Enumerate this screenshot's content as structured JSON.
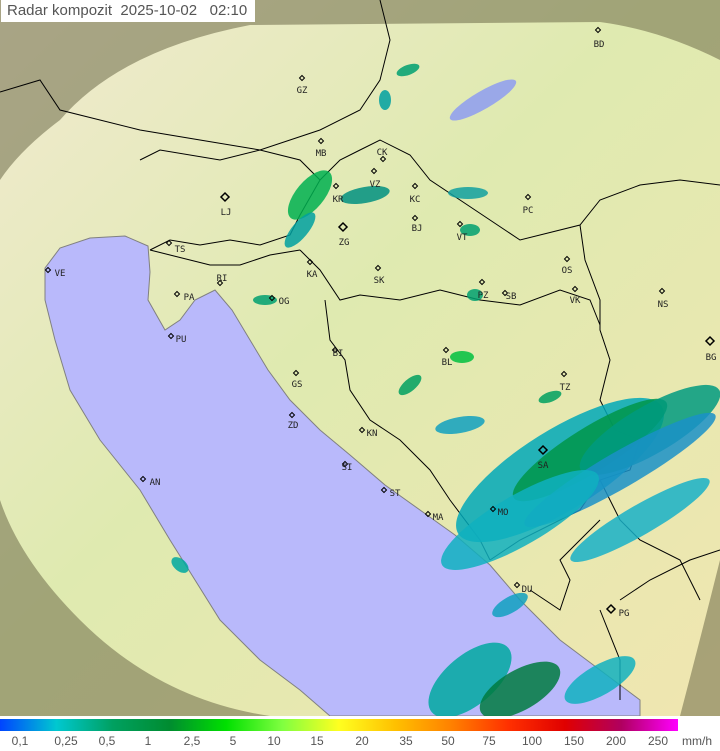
{
  "title": {
    "label": "Radar kompozit",
    "date": "2025-10-02",
    "time": "02:10"
  },
  "cities": [
    {
      "code": "GZ"
    },
    {
      "code": "BD"
    },
    {
      "code": "MB"
    },
    {
      "code": "CK"
    },
    {
      "code": "VZ"
    },
    {
      "code": "KR"
    },
    {
      "code": "KC"
    },
    {
      "code": "LJ"
    },
    {
      "code": "BJ"
    },
    {
      "code": "PC"
    },
    {
      "code": "ZG"
    },
    {
      "code": "VT"
    },
    {
      "code": "TS"
    },
    {
      "code": "VE"
    },
    {
      "code": "KA"
    },
    {
      "code": "SK"
    },
    {
      "code": "OS"
    },
    {
      "code": "RI"
    },
    {
      "code": "PA"
    },
    {
      "code": "OG"
    },
    {
      "code": "PZ"
    },
    {
      "code": "SB"
    },
    {
      "code": "VK"
    },
    {
      "code": "NS"
    },
    {
      "code": "PU"
    },
    {
      "code": "BI"
    },
    {
      "code": "BL"
    },
    {
      "code": "BG"
    },
    {
      "code": "GS"
    },
    {
      "code": "TZ"
    },
    {
      "code": "ZD"
    },
    {
      "code": "KN"
    },
    {
      "code": "SA"
    },
    {
      "code": "AN"
    },
    {
      "code": "SI"
    },
    {
      "code": "ST"
    },
    {
      "code": "MO"
    },
    {
      "code": "MA"
    },
    {
      "code": "DU"
    },
    {
      "code": "PG"
    }
  ],
  "legend": {
    "unit": "mm/h",
    "ticks": [
      "0,1",
      "0,25",
      "0,5",
      "1",
      "2,5",
      "5",
      "10",
      "15",
      "20",
      "35",
      "50",
      "75",
      "100",
      "150",
      "200",
      "250"
    ],
    "colors": [
      "#0044ff",
      "#00c8d0",
      "#00a060",
      "#008c30",
      "#00e000",
      "#80ff40",
      "#ffff20",
      "#ffc000",
      "#ff8000",
      "#ff3000",
      "#e00000",
      "#b00060",
      "#ff00ff"
    ]
  },
  "colors": {
    "sea": "#b8b8ff",
    "land": "#e8ecb0",
    "no_coverage": "#8a8a60",
    "border": "#000000"
  }
}
